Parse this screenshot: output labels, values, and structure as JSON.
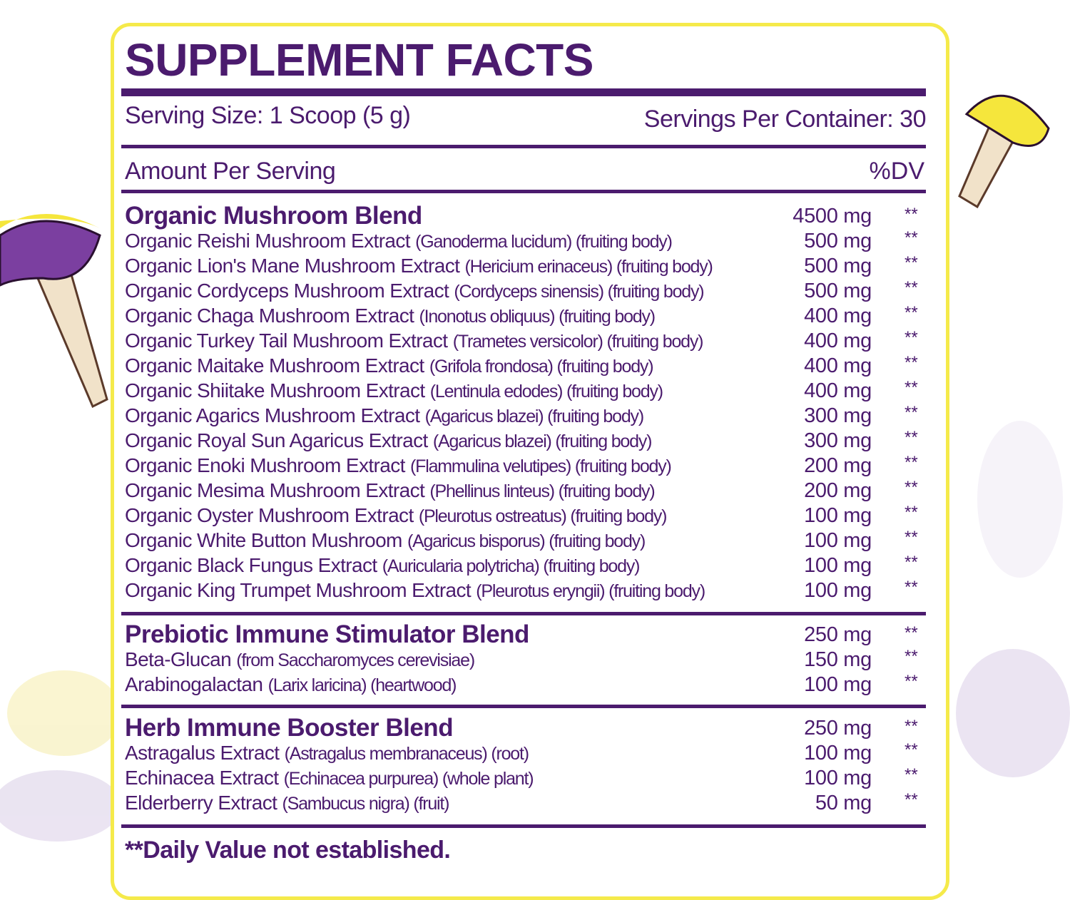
{
  "header": {
    "title": "SUPPLEMENT FACTS",
    "serving_size": "Serving Size: 1 Scoop (5 g)",
    "servings_per_container": "Servings Per Container: 30",
    "amount_per_serving": "Amount Per Serving",
    "dv_header": "%DV"
  },
  "sections": [
    {
      "name": "Organic Mushroom Blend",
      "amount": "4500 mg",
      "dv": "**",
      "items": [
        {
          "name": "Organic Reishi Mushroom Extract",
          "detail": "(Ganoderma lucidum) (fruiting body)",
          "amount": "500 mg",
          "dv": "**"
        },
        {
          "name": "Organic Lion's Mane Mushroom Extract",
          "detail": "(Hericium erinaceus) (fruiting body)",
          "amount": "500 mg",
          "dv": "**"
        },
        {
          "name": "Organic Cordyceps Mushroom Extract",
          "detail": "(Cordyceps sinensis) (fruiting body)",
          "amount": "500 mg",
          "dv": "**"
        },
        {
          "name": "Organic Chaga Mushroom Extract",
          "detail": "(Inonotus obliquus) (fruiting body)",
          "amount": "400 mg",
          "dv": "**"
        },
        {
          "name": "Organic Turkey Tail Mushroom Extract",
          "detail": "(Trametes versicolor) (fruiting body)",
          "amount": "400 mg",
          "dv": "**"
        },
        {
          "name": "Organic Maitake Mushroom Extract",
          "detail": "(Grifola frondosa) (fruiting body)",
          "amount": "400 mg",
          "dv": "**"
        },
        {
          "name": "Organic Shiitake Mushroom Extract",
          "detail": "(Lentinula edodes) (fruiting body)",
          "amount": "400 mg",
          "dv": "**"
        },
        {
          "name": "Organic Agarics Mushroom Extract",
          "detail": "(Agaricus blazei) (fruiting body)",
          "amount": "300 mg",
          "dv": "**"
        },
        {
          "name": "Organic Royal Sun Agaricus Extract",
          "detail": "(Agaricus blazei) (fruiting body)",
          "amount": "300 mg",
          "dv": "**"
        },
        {
          "name": "Organic Enoki Mushroom Extract",
          "detail": "(Flammulina velutipes) (fruiting body)",
          "amount": "200 mg",
          "dv": "**"
        },
        {
          "name": "Organic Mesima Mushroom Extract",
          "detail": "(Phellinus linteus) (fruiting body)",
          "amount": "200 mg",
          "dv": "**"
        },
        {
          "name": "Organic Oyster Mushroom Extract",
          "detail": "(Pleurotus ostreatus) (fruiting body)",
          "amount": "100 mg",
          "dv": "**"
        },
        {
          "name": "Organic White Button Mushroom",
          "detail": "(Agaricus bisporus) (fruiting body)",
          "amount": "100 mg",
          "dv": "**"
        },
        {
          "name": "Organic Black Fungus Extract",
          "detail": "(Auricularia polytricha) (fruiting body)",
          "amount": "100 mg",
          "dv": "**"
        },
        {
          "name": "Organic King Trumpet Mushroom Extract",
          "detail": "(Pleurotus eryngii) (fruiting body)",
          "amount": "100 mg",
          "dv": "**"
        }
      ]
    },
    {
      "name": "Prebiotic Immune Stimulator Blend",
      "amount": "250 mg",
      "dv": "**",
      "items": [
        {
          "name": "Beta-Glucan",
          "detail": "(from Saccharomyces cerevisiae)",
          "amount": "150 mg",
          "dv": "**"
        },
        {
          "name": "Arabinogalactan",
          "detail": "(Larix laricina) (heartwood)",
          "amount": "100 mg",
          "dv": "**"
        }
      ]
    },
    {
      "name": "Herb Immune Booster Blend",
      "amount": "250 mg",
      "dv": "**",
      "items": [
        {
          "name": "Astragalus Extract",
          "detail": "(Astragalus membranaceus) (root)",
          "amount": "100 mg",
          "dv": "**"
        },
        {
          "name": "Echinacea Extract",
          "detail": "(Echinacea purpurea) (whole plant)",
          "amount": "100 mg",
          "dv": "**"
        },
        {
          "name": "Elderberry Extract",
          "detail": "(Sambucus nigra) (fruit)",
          "amount": "50 mg",
          "dv": "**"
        }
      ]
    }
  ],
  "footnote": "**Daily Value not established."
}
